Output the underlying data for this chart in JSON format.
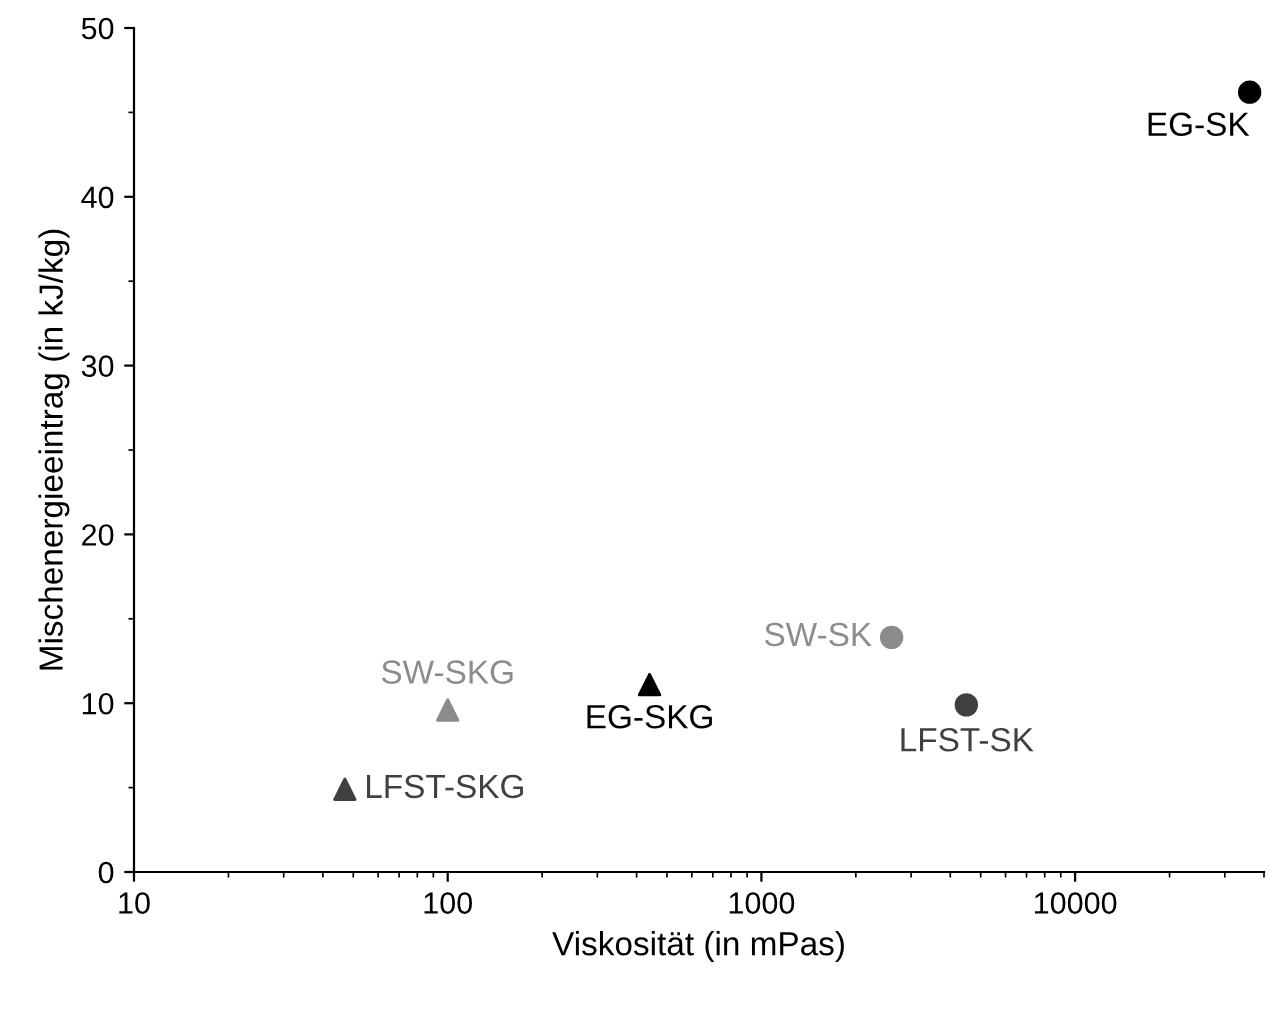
{
  "chart_data": {
    "type": "scatter",
    "xlabel": "Viskosität (in mPas)",
    "ylabel": "Mischenergieeintrag (in kJ/kg)",
    "log": "x",
    "xlim": [
      10,
      40000
    ],
    "xticks": [
      10,
      100,
      1000,
      10000
    ],
    "ylim": [
      0,
      50
    ],
    "yticks": [
      0,
      10,
      20,
      30,
      40,
      50
    ],
    "grid": false,
    "legend": false,
    "series": [
      {
        "name": "EG-SK",
        "color": "#000000",
        "marker": "circle",
        "x": [
          36000
        ],
        "values": [
          46.2
        ]
      },
      {
        "name": "SW-SK",
        "color": "#8c8c8c",
        "marker": "circle",
        "x": [
          2600
        ],
        "values": [
          13.9
        ]
      },
      {
        "name": "LFST-SK",
        "color": "#404040",
        "marker": "circle",
        "x": [
          4500
        ],
        "values": [
          9.9
        ]
      },
      {
        "name": "EG-SKG",
        "color": "#000000",
        "marker": "triangle",
        "x": [
          440
        ],
        "values": [
          11.1
        ]
      },
      {
        "name": "SW-SKG",
        "color": "#8c8c8c",
        "marker": "triangle",
        "x": [
          100
        ],
        "values": [
          9.6
        ]
      },
      {
        "name": "LFST-SKG",
        "color": "#404040",
        "marker": "triangle",
        "x": [
          47
        ],
        "values": [
          4.9
        ]
      }
    ]
  }
}
